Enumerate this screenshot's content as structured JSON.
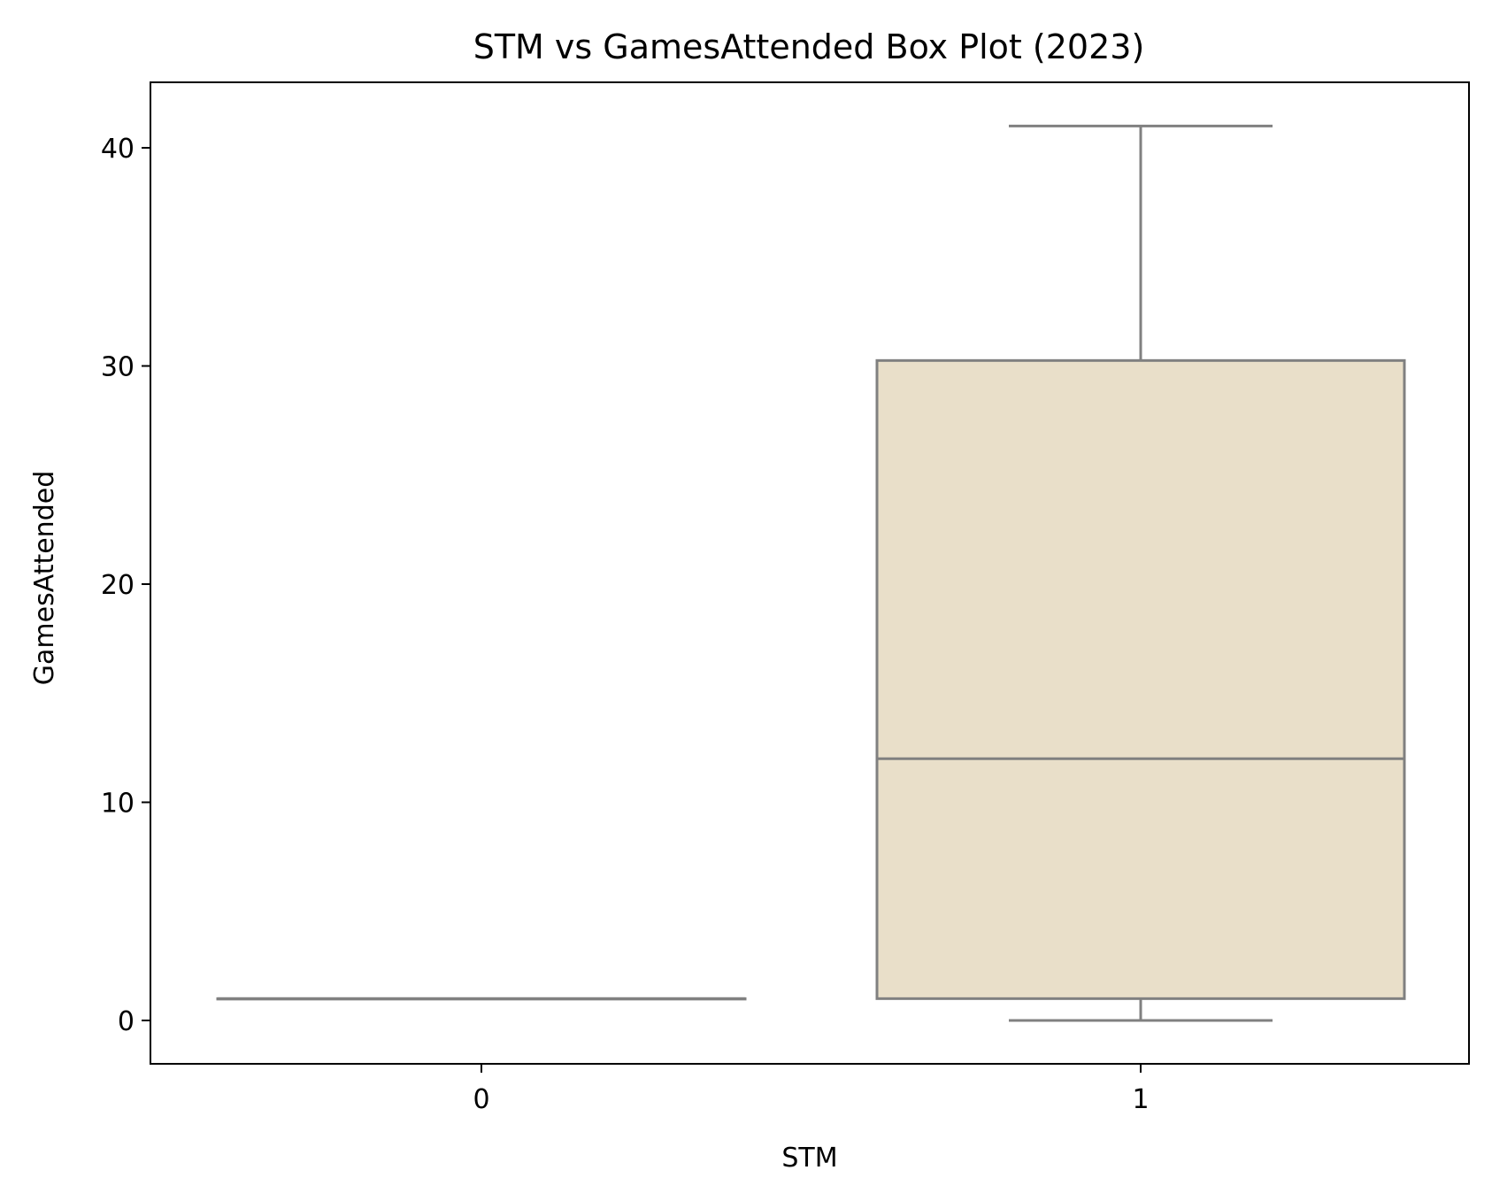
{
  "chart_data": {
    "type": "box",
    "title": "STM vs GamesAttended Box Plot (2023)",
    "xlabel": "STM",
    "ylabel": "GamesAttended",
    "categories": [
      "0",
      "1"
    ],
    "yticks": [
      "0",
      "10",
      "20",
      "30",
      "40"
    ],
    "ylim": [
      -2,
      43
    ],
    "grid": false,
    "legend": "none",
    "boxes": [
      {
        "category": "0",
        "whislo": 1,
        "q1": 1,
        "median": 1,
        "q3": 1,
        "whishi": 1
      },
      {
        "category": "1",
        "whislo": 0,
        "q1": 1,
        "median": 12,
        "q3": 30.25,
        "whishi": 41
      }
    ],
    "colors": {
      "box_fill": "#e9dfc9",
      "box_line": "#808080",
      "axes": "#000000"
    }
  }
}
